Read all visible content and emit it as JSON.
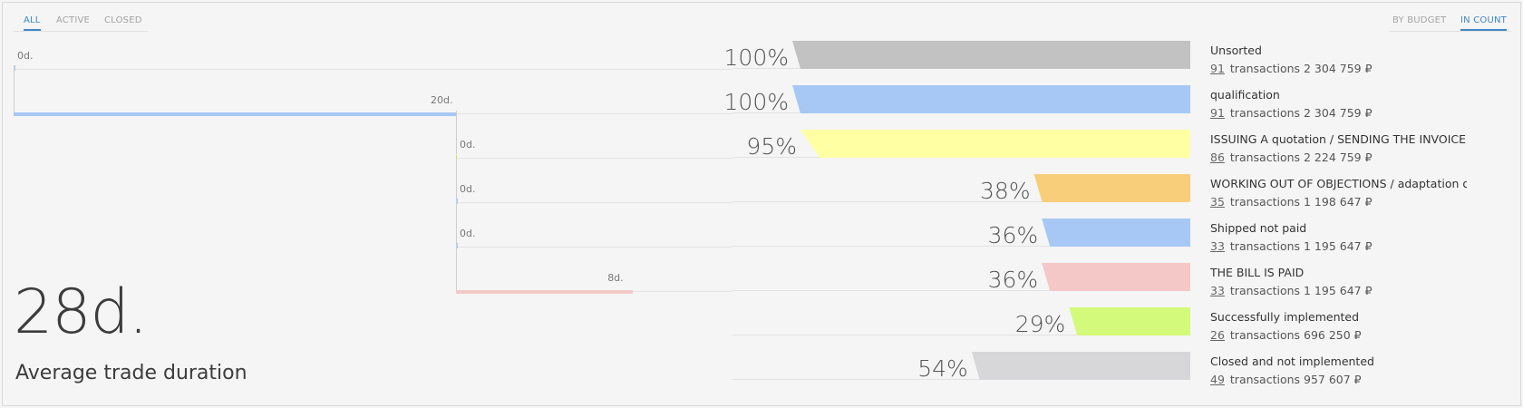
{
  "tabs_left": [
    {
      "label": "ALL",
      "active": true
    },
    {
      "label": "ACTIVE",
      "active": false
    },
    {
      "label": "CLOSED",
      "active": false
    }
  ],
  "tabs_right": [
    {
      "label": "BY BUDGET",
      "active": false
    },
    {
      "label": "IN COUNT",
      "active": true
    }
  ],
  "timeline": [
    {
      "days": "0d.",
      "value": 0,
      "color": "#a7c8f5"
    },
    {
      "days": "20d.",
      "value": 20,
      "color": "#a7c8f5"
    },
    {
      "days": "0d.",
      "value": 0,
      "color": "#fafa9e"
    },
    {
      "days": "0d.",
      "value": 0,
      "color": "#a7c8f5"
    },
    {
      "days": "0d.",
      "value": 0,
      "color": "#a7c8f5"
    },
    {
      "days": "8d.",
      "value": 8,
      "color": "#f5c8c8"
    }
  ],
  "summary": {
    "value": "28d.",
    "caption": "Average trade duration"
  },
  "stages": [
    {
      "pct": "100%",
      "percent": 100,
      "prev": 100,
      "color": "#c2c2c2",
      "name": "Unsorted",
      "count": "91",
      "detail": "transactions 2 304 759 ₽"
    },
    {
      "pct": "100%",
      "percent": 100,
      "prev": 100,
      "color": "#a7c8f5",
      "name": "qualification",
      "count": "91",
      "detail": "transactions 2 304 759 ₽"
    },
    {
      "pct": "95%",
      "percent": 95,
      "prev": 100,
      "color": "#ffffa3",
      "name": "ISSUING A quotation / SENDING THE INVOICE",
      "count": "86",
      "detail": "transactions 2 224 759 ₽"
    },
    {
      "pct": "38%",
      "percent": 38,
      "prev": 38,
      "color": "#f8ce7a",
      "name": "WORKING OUT OF OBJECTIONS / adaptation of",
      "count": "35",
      "detail": "transactions 1 198 647 ₽"
    },
    {
      "pct": "36%",
      "percent": 36,
      "prev": 38,
      "color": "#a7c8f5",
      "name": "Shipped not paid",
      "count": "33",
      "detail": "transactions 1 195 647 ₽"
    },
    {
      "pct": "36%",
      "percent": 36,
      "prev": 36,
      "color": "#f5c8c8",
      "name": "THE BILL IS PAID",
      "count": "33",
      "detail": "transactions 1 195 647 ₽"
    },
    {
      "pct": "29%",
      "percent": 29,
      "prev": 30,
      "color": "#d3fa7a",
      "name": "Successfully implemented",
      "count": "26",
      "detail": "transactions 696 250 ₽"
    },
    {
      "pct": "54%",
      "percent": 54,
      "prev": 54,
      "color": "#d7d7da",
      "name": "Closed and not implemented",
      "count": "49",
      "detail": "transactions 957 607 ₽"
    }
  ]
}
